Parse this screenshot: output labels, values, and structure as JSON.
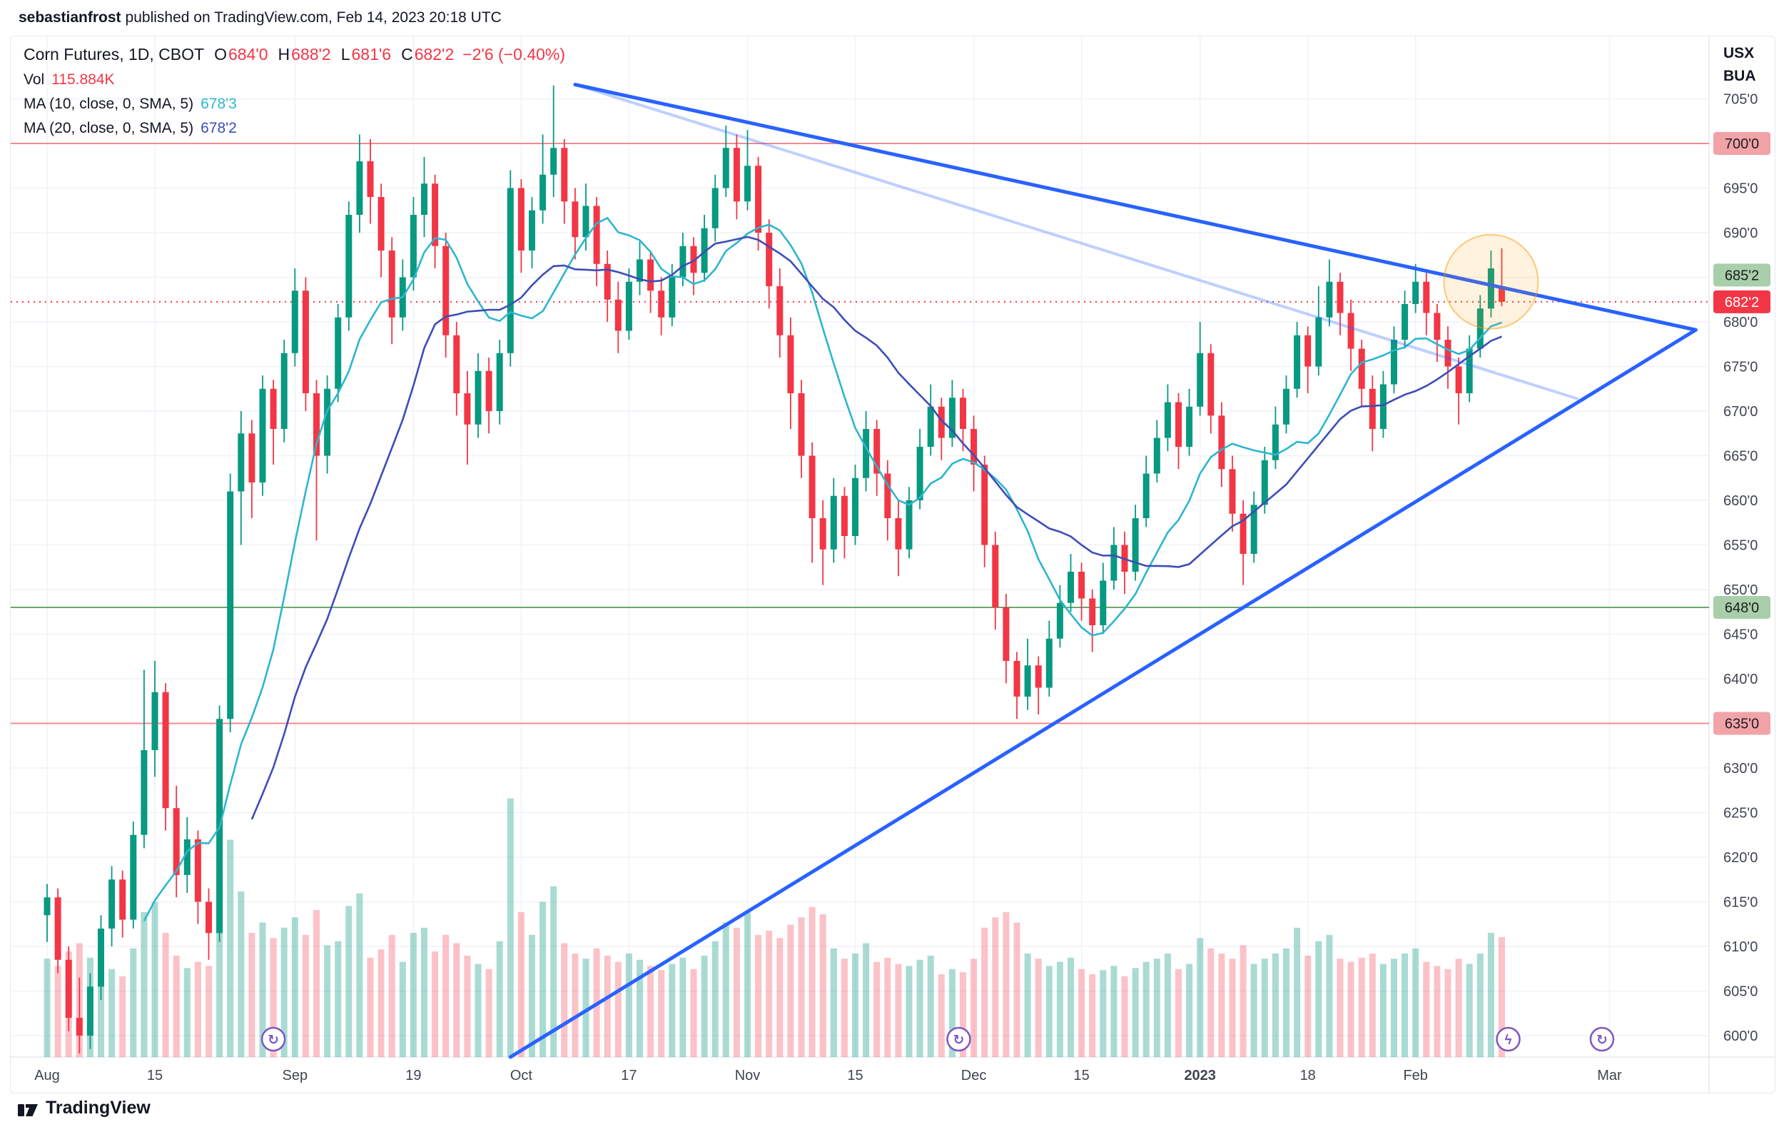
{
  "header": {
    "author": "sebastianfrost",
    "rest": "published on TradingView.com, Feb 14, 2023 20:18 UTC"
  },
  "legend": {
    "symbol": "Corn Futures, 1D, CBOT",
    "o_label": "O",
    "o": "684'0",
    "h_label": "H",
    "h": "688'2",
    "l_label": "L",
    "l": "681'6",
    "c_label": "C",
    "c": "682'2",
    "change": "−2'6 (−0.40%)",
    "vol_label": "Vol",
    "vol": "115.884K",
    "ma10_label": "MA (10, close, 0, SMA, 5)",
    "ma10": "678'3",
    "ma20_label": "MA (20, close, 0, SMA, 5)",
    "ma20": "678'2"
  },
  "axis_units": {
    "top": "USX",
    "bottom": "BUA"
  },
  "footer": {
    "brand": "TradingView"
  },
  "chart_data": {
    "type": "candlestick",
    "title": "Corn Futures, 1D, CBOT",
    "interval": "1D",
    "exchange": "CBOT",
    "last_bar": {
      "open": "684'0",
      "high": "688'2",
      "low": "681'6",
      "close": "682'2",
      "change": "−2'6 (−0.40%)",
      "volume": "115.884K"
    },
    "ylim": [
      597,
      707
    ],
    "grid": true,
    "price_ticks": [
      {
        "value": 705,
        "label": "705'0"
      },
      {
        "value": 700,
        "label": "700'0"
      },
      {
        "value": 695,
        "label": "695'0"
      },
      {
        "value": 690,
        "label": "690'0"
      },
      {
        "value": 685,
        "label": "685'0"
      },
      {
        "value": 680,
        "label": "680'0"
      },
      {
        "value": 675,
        "label": "675'0"
      },
      {
        "value": 670,
        "label": "670'0"
      },
      {
        "value": 665,
        "label": "665'0"
      },
      {
        "value": 660,
        "label": "660'0"
      },
      {
        "value": 655,
        "label": "655'0"
      },
      {
        "value": 650,
        "label": "650'0"
      },
      {
        "value": 645,
        "label": "645'0"
      },
      {
        "value": 640,
        "label": "640'0"
      },
      {
        "value": 635,
        "label": "635'0"
      },
      {
        "value": 630,
        "label": "630'0"
      },
      {
        "value": 625,
        "label": "625'0"
      },
      {
        "value": 620,
        "label": "620'0"
      },
      {
        "value": 615,
        "label": "615'0"
      },
      {
        "value": 610,
        "label": "610'0"
      },
      {
        "value": 605,
        "label": "605'0"
      },
      {
        "value": 600,
        "label": "600'0"
      }
    ],
    "time_ticks": [
      {
        "i": 0,
        "label": "Aug"
      },
      {
        "i": 10,
        "label": "15"
      },
      {
        "i": 23,
        "label": "Sep"
      },
      {
        "i": 34,
        "label": "19"
      },
      {
        "i": 44,
        "label": "Oct"
      },
      {
        "i": 54,
        "label": "17"
      },
      {
        "i": 65,
        "label": "Nov"
      },
      {
        "i": 75,
        "label": "15"
      },
      {
        "i": 86,
        "label": "Dec"
      },
      {
        "i": 96,
        "label": "15"
      },
      {
        "i": 107,
        "label": "2023",
        "bold": true
      },
      {
        "i": 117,
        "label": "18"
      },
      {
        "i": 127,
        "label": "Feb"
      },
      {
        "i": 145,
        "label": "Mar"
      }
    ],
    "levels": [
      {
        "price": 700,
        "label": "700'0",
        "line": "#f28b91",
        "style": "solid",
        "badge_bg": "#f2a3a8",
        "badge_fg": "#1d1d1d"
      },
      {
        "price": 685.25,
        "label": "685'2",
        "line": "#6aა86c",
        "style": "solid",
        "badge_bg": "#a8cfaa",
        "badge_fg": "#1d1d1d"
      },
      {
        "price": 648,
        "label": "648'0",
        "line": "#6aa86c",
        "style": "solid",
        "badge_bg": "#a8cfaa",
        "badge_fg": "#1d1d1d"
      },
      {
        "price": 635,
        "label": "635'0",
        "line": "#f28b91",
        "style": "solid",
        "badge_bg": "#f2a3a8",
        "badge_fg": "#1d1d1d"
      },
      {
        "price": 682.25,
        "label": "682'2",
        "line": "#f23645",
        "style": "dotted",
        "badge_bg": "#f23645",
        "badge_fg": "#ffffff"
      }
    ],
    "trendlines": [
      {
        "i1": 49,
        "p1": 706.6,
        "i2": 142,
        "p2": 671.4,
        "color": "#2962ff",
        "width": 4,
        "opacity": 0.3
      },
      {
        "i1": 49,
        "p1": 706.6,
        "i2": 153,
        "p2": 679.1,
        "color": "#2962ff",
        "width": 5,
        "opacity": 1
      },
      {
        "i1": 43,
        "p1": 597.6,
        "i2": 153,
        "p2": 679.1,
        "color": "#2962ff",
        "width": 5,
        "opacity": 1
      }
    ],
    "highlight": {
      "i": 134,
      "price": 684.5,
      "r": 66,
      "fill": "rgba(255,152,0,0.13)",
      "stroke": "rgba(255,152,0,0.5)"
    },
    "events": [
      {
        "i": 21,
        "glyph": "↻",
        "name": "event-marker"
      },
      {
        "i": 84.6,
        "glyph": "↻",
        "name": "event-marker"
      },
      {
        "i": 135.6,
        "glyph": "ϟ",
        "name": "publish-marker"
      },
      {
        "i": 144.3,
        "glyph": "↻",
        "name": "event-marker"
      }
    ],
    "colors": {
      "up": "#089981",
      "down": "#f23645",
      "vol_up": "rgba(8,153,129,0.35)",
      "vol_down": "rgba(242,54,69,0.30)",
      "ma10": "#2cb6cf",
      "ma20": "#3d4db7",
      "trend": "#2962ff",
      "grid": "#f0f2f8",
      "axis_text": "#41454f",
      "event": "#7e57c2"
    },
    "bars": [
      [
        613.5,
        617,
        610.5,
        615.5,
        95
      ],
      [
        615.5,
        616.5,
        607,
        608.5,
        88
      ],
      [
        608.5,
        610,
        600.5,
        602,
        102
      ],
      [
        602,
        606.5,
        598,
        600,
        110
      ],
      [
        600,
        607,
        598.5,
        605.5,
        96
      ],
      [
        605.5,
        613.5,
        604,
        612,
        90
      ],
      [
        612,
        619,
        610,
        617.5,
        85
      ],
      [
        617.5,
        618.5,
        611,
        613,
        78
      ],
      [
        613,
        624,
        612,
        622.5,
        105
      ],
      [
        622.5,
        641,
        621,
        632,
        140
      ],
      [
        632,
        642,
        629,
        638.5,
        150
      ],
      [
        638.5,
        639.5,
        623,
        625.5,
        120
      ],
      [
        625.5,
        628,
        615.5,
        618,
        98
      ],
      [
        618,
        624.5,
        616,
        622,
        86
      ],
      [
        622,
        623,
        612.5,
        615,
        92
      ],
      [
        615,
        616.5,
        608.5,
        611.5,
        88
      ],
      [
        611.5,
        637,
        610.5,
        635.5,
        185
      ],
      [
        635.5,
        663,
        634,
        661,
        210
      ],
      [
        661,
        670,
        655,
        667.5,
        160
      ],
      [
        667.5,
        669,
        658,
        662,
        120
      ],
      [
        662,
        674,
        660.5,
        672.5,
        130
      ],
      [
        672.5,
        673.5,
        664,
        668,
        115
      ],
      [
        668,
        678,
        666.5,
        676.5,
        125
      ],
      [
        676.5,
        686,
        675,
        683.5,
        135
      ],
      [
        683.5,
        685,
        670,
        672,
        118
      ],
      [
        672,
        673.5,
        655.5,
        665,
        142
      ],
      [
        665,
        674,
        663,
        672.5,
        108
      ],
      [
        672.5,
        682,
        671,
        680.5,
        112
      ],
      [
        680.5,
        693.5,
        679,
        692,
        146
      ],
      [
        692,
        701,
        690,
        698,
        158
      ],
      [
        698,
        700.5,
        691,
        694,
        96
      ],
      [
        694,
        695.5,
        685,
        688,
        104
      ],
      [
        688,
        689.5,
        677.5,
        680.5,
        118
      ],
      [
        680.5,
        687,
        679,
        685,
        92
      ],
      [
        685,
        694,
        683.5,
        692,
        120
      ],
      [
        692,
        698.5,
        689.5,
        695.5,
        125
      ],
      [
        695.5,
        696.5,
        686,
        688.5,
        102
      ],
      [
        688.5,
        690,
        676,
        678.5,
        118
      ],
      [
        678.5,
        680,
        669.5,
        672,
        110
      ],
      [
        672,
        674.5,
        664,
        668.5,
        98
      ],
      [
        668.5,
        676.5,
        667,
        674.5,
        90
      ],
      [
        674.5,
        676,
        667.5,
        670,
        85
      ],
      [
        670,
        678,
        668.5,
        676.5,
        112
      ],
      [
        676.5,
        697,
        675,
        695,
        250
      ],
      [
        695,
        696,
        685.5,
        688,
        140
      ],
      [
        688,
        694,
        686,
        692.5,
        118
      ],
      [
        692.5,
        701,
        691,
        696.5,
        150
      ],
      [
        696.5,
        706.5,
        694,
        699.5,
        165
      ],
      [
        699.5,
        700.5,
        691,
        693.5,
        110
      ],
      [
        693.5,
        695,
        687,
        689.5,
        100
      ],
      [
        689.5,
        695.5,
        688,
        693,
        95
      ],
      [
        693,
        694,
        684,
        686.5,
        105
      ],
      [
        686.5,
        688,
        680,
        682.5,
        98
      ],
      [
        682.5,
        684.5,
        676.5,
        679,
        92
      ],
      [
        679,
        686,
        678,
        684.5,
        100
      ],
      [
        684.5,
        689,
        683,
        687,
        94
      ],
      [
        687,
        688,
        681,
        683.5,
        88
      ],
      [
        683.5,
        685,
        678.5,
        680.5,
        84
      ],
      [
        680.5,
        686.5,
        679.5,
        685,
        90
      ],
      [
        685,
        690,
        684,
        688.5,
        96
      ],
      [
        688.5,
        689.5,
        683,
        685.5,
        85
      ],
      [
        685.5,
        692,
        684.5,
        690.5,
        98
      ],
      [
        690.5,
        696.5,
        689,
        695,
        112
      ],
      [
        695,
        702,
        694,
        699.5,
        130
      ],
      [
        699.5,
        701,
        691.5,
        693.5,
        125
      ],
      [
        693.5,
        701.5,
        692.5,
        697.5,
        140
      ],
      [
        697.5,
        698.5,
        688,
        690,
        118
      ],
      [
        690,
        691.5,
        681.5,
        684,
        122
      ],
      [
        684,
        686,
        676,
        678.5,
        115
      ],
      [
        678.5,
        680.5,
        668,
        672,
        128
      ],
      [
        672,
        673.5,
        662.5,
        665,
        135
      ],
      [
        665,
        666.5,
        653,
        658,
        145
      ],
      [
        658,
        660,
        650.5,
        654.5,
        138
      ],
      [
        654.5,
        662.5,
        653,
        660.5,
        105
      ],
      [
        660.5,
        661.5,
        653.5,
        656,
        95
      ],
      [
        656,
        664,
        655,
        662.5,
        100
      ],
      [
        662.5,
        670,
        661,
        668,
        110
      ],
      [
        668,
        669,
        660.5,
        663,
        92
      ],
      [
        663,
        664.5,
        655.5,
        658,
        96
      ],
      [
        658,
        660,
        651.5,
        654.5,
        90
      ],
      [
        654.5,
        661.5,
        653.5,
        660,
        88
      ],
      [
        660,
        668,
        659,
        666,
        94
      ],
      [
        666,
        673,
        665,
        670.5,
        98
      ],
      [
        670.5,
        671.5,
        664.5,
        667,
        80
      ],
      [
        667,
        673.5,
        666,
        671.5,
        85
      ],
      [
        671.5,
        672.5,
        665.5,
        668,
        82
      ],
      [
        668,
        669.5,
        661,
        664,
        95
      ],
      [
        664,
        665,
        652.5,
        655,
        125
      ],
      [
        655,
        656.5,
        645.5,
        648,
        135
      ],
      [
        648,
        649.5,
        639.5,
        642,
        140
      ],
      [
        642,
        643,
        635.5,
        638,
        130
      ],
      [
        638,
        644.5,
        636.5,
        641.5,
        100
      ],
      [
        641.5,
        642.5,
        636,
        639,
        95
      ],
      [
        639,
        646.5,
        638,
        644.5,
        88
      ],
      [
        644.5,
        650.5,
        643.5,
        648.5,
        92
      ],
      [
        648.5,
        654,
        647.5,
        652,
        96
      ],
      [
        652,
        653,
        646.5,
        649,
        85
      ],
      [
        649,
        650,
        643,
        646,
        80
      ],
      [
        646,
        653,
        645,
        651,
        84
      ],
      [
        651,
        657,
        650,
        655,
        88
      ],
      [
        655,
        656.5,
        649.5,
        652,
        78
      ],
      [
        652,
        659.5,
        651,
        658,
        86
      ],
      [
        658,
        665,
        657,
        663,
        92
      ],
      [
        663,
        669,
        662,
        667,
        95
      ],
      [
        667,
        673,
        665.5,
        671,
        100
      ],
      [
        671,
        672,
        663.5,
        666,
        85
      ],
      [
        666,
        672.5,
        665,
        670.5,
        90
      ],
      [
        670.5,
        680,
        669.5,
        676.5,
        115
      ],
      [
        676.5,
        677.5,
        667.5,
        669.5,
        105
      ],
      [
        669.5,
        671,
        661.5,
        663.5,
        100
      ],
      [
        663.5,
        665,
        656.5,
        658.5,
        95
      ],
      [
        658.5,
        660,
        650.5,
        654,
        108
      ],
      [
        654,
        661,
        653,
        659.5,
        90
      ],
      [
        659.5,
        666,
        658.5,
        664.5,
        95
      ],
      [
        664.5,
        670.5,
        663.5,
        668.5,
        100
      ],
      [
        668.5,
        674,
        667.5,
        672.5,
        105
      ],
      [
        672.5,
        680,
        671.5,
        678.5,
        125
      ],
      [
        678.5,
        679.5,
        672,
        675,
        98
      ],
      [
        675,
        684,
        674,
        680.5,
        112
      ],
      [
        680.5,
        687,
        679.5,
        684.5,
        118
      ],
      [
        684.5,
        685.5,
        678.5,
        681,
        95
      ],
      [
        681,
        682.5,
        674.5,
        677,
        92
      ],
      [
        677,
        678,
        670.5,
        672.5,
        96
      ],
      [
        672.5,
        674,
        665.5,
        668,
        100
      ],
      [
        668,
        674.5,
        667,
        673,
        90
      ],
      [
        673,
        679.5,
        672,
        678,
        95
      ],
      [
        678,
        683.5,
        677,
        682,
        100
      ],
      [
        682,
        686.5,
        681,
        684.5,
        105
      ],
      [
        684.5,
        685.5,
        678.5,
        681,
        92
      ],
      [
        681,
        682,
        675.5,
        678,
        88
      ],
      [
        678,
        679.5,
        672.5,
        675,
        85
      ],
      [
        675,
        676,
        668.5,
        672,
        95
      ],
      [
        672,
        678.5,
        671,
        677,
        90
      ],
      [
        677,
        683,
        676,
        681.5,
        100
      ],
      [
        681.5,
        688,
        680.5,
        686,
        120
      ],
      [
        684,
        688.25,
        681.75,
        682.25,
        115.884
      ]
    ]
  }
}
